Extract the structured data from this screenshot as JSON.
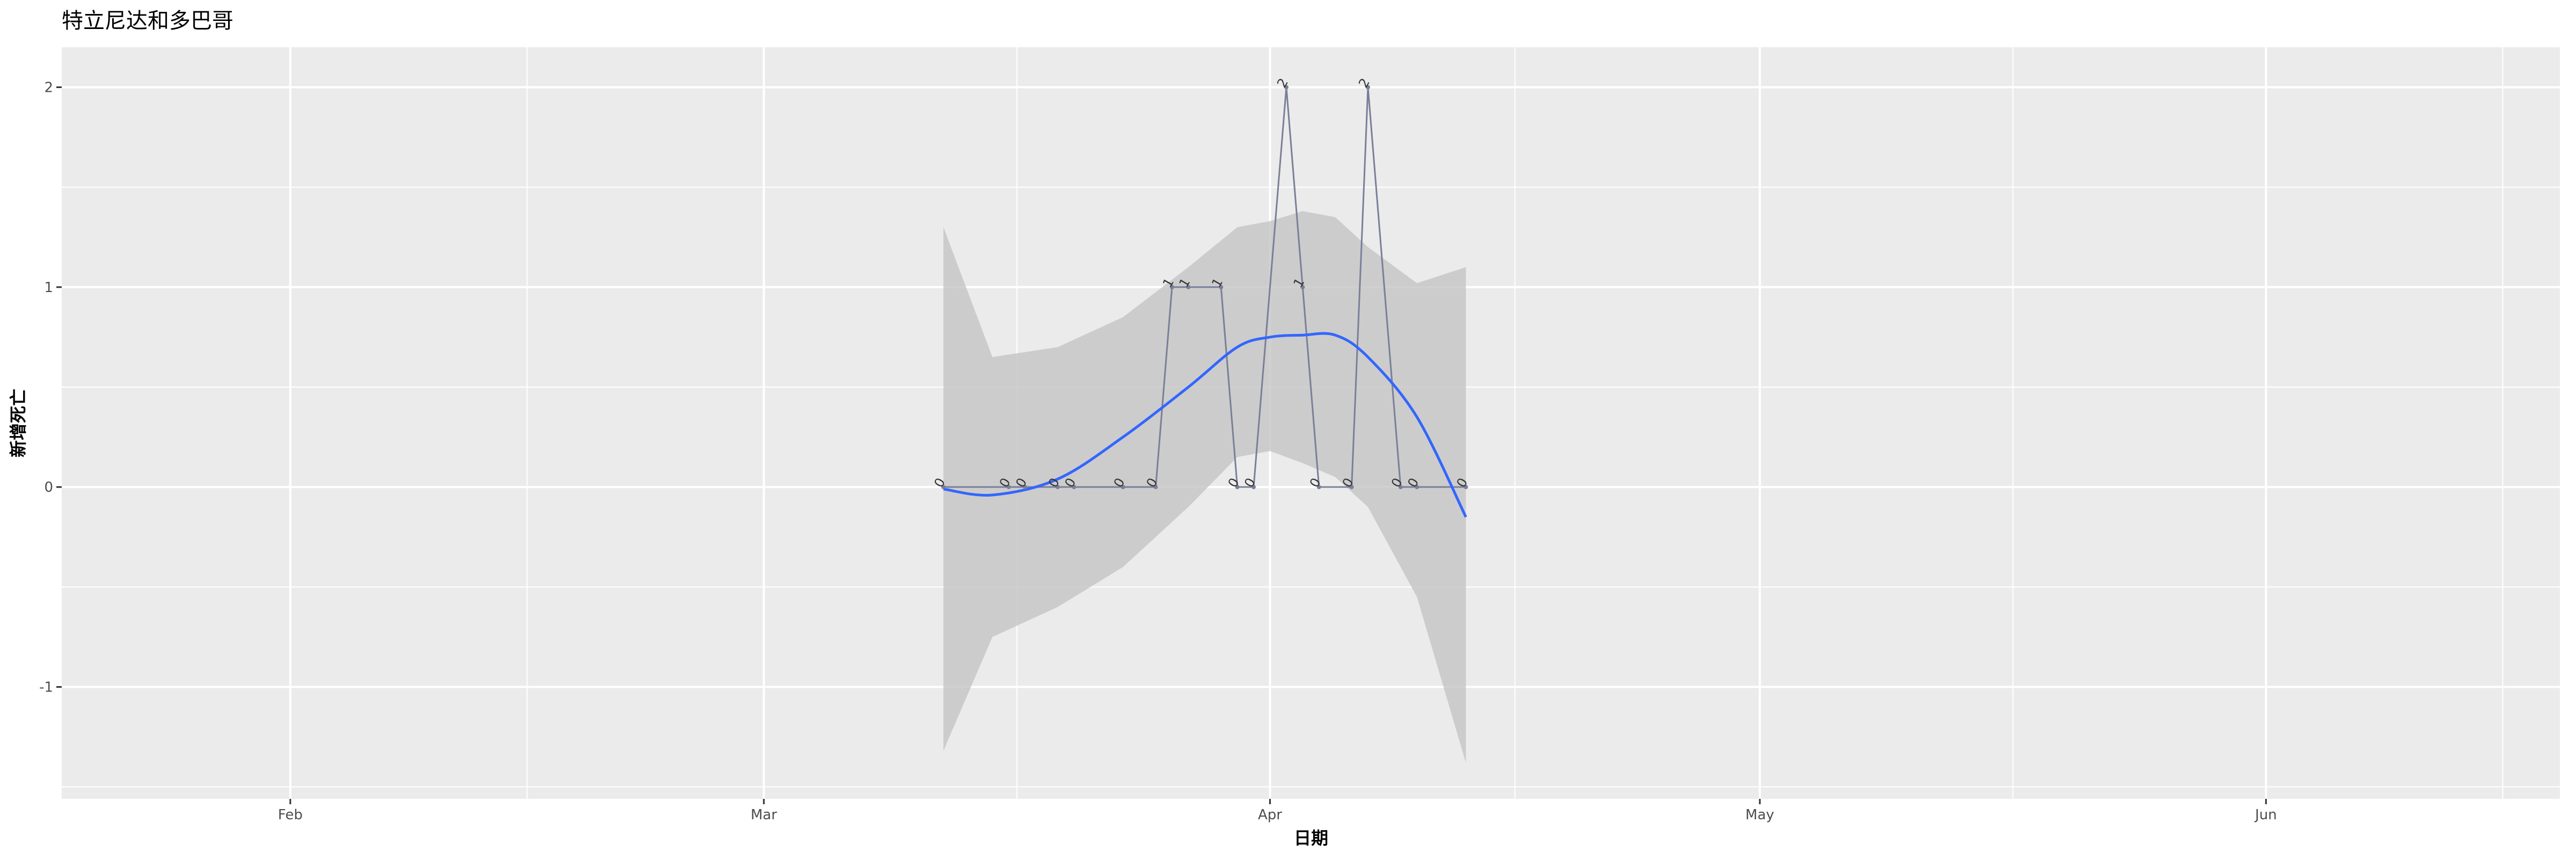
{
  "chart_data": {
    "type": "line",
    "title": "特立尼达和多巴哥",
    "xlabel": "日期",
    "ylabel": "新增死亡",
    "x_ticks": [
      "Feb",
      "Mar",
      "Apr",
      "May",
      "Jun"
    ],
    "x_tick_dates": [
      "2020-02-01",
      "2020-03-01",
      "2020-04-01",
      "2020-05-01",
      "2020-06-01"
    ],
    "y_ticks": [
      -1,
      0,
      1,
      2
    ],
    "xlim": [
      "2020-01-18",
      "2020-06-19"
    ],
    "ylim": [
      -1.56,
      2.2
    ],
    "grid": true,
    "legend": "none",
    "series": [
      {
        "values": [
          {
            "x": "2020-03-12",
            "y": 0
          },
          {
            "x": "2020-03-16",
            "y": 0
          },
          {
            "x": "2020-03-17",
            "y": 0
          },
          {
            "x": "2020-03-19",
            "y": 0
          },
          {
            "x": "2020-03-20",
            "y": 0
          },
          {
            "x": "2020-03-23",
            "y": 0
          },
          {
            "x": "2020-03-25",
            "y": 0
          },
          {
            "x": "2020-03-26",
            "y": 1
          },
          {
            "x": "2020-03-27",
            "y": 1
          },
          {
            "x": "2020-03-29",
            "y": 1
          },
          {
            "x": "2020-03-30",
            "y": 0
          },
          {
            "x": "2020-03-31",
            "y": 0
          },
          {
            "x": "2020-04-02",
            "y": 2
          },
          {
            "x": "2020-04-03",
            "y": 1
          },
          {
            "x": "2020-04-04",
            "y": 0
          },
          {
            "x": "2020-04-06",
            "y": 0
          },
          {
            "x": "2020-04-07",
            "y": 2
          },
          {
            "x": "2020-04-09",
            "y": 0
          },
          {
            "x": "2020-04-10",
            "y": 0
          },
          {
            "x": "2020-04-13",
            "y": 0
          }
        ]
      }
    ],
    "smooth": {
      "method": "loess",
      "x": [
        "2020-03-12",
        "2020-03-15",
        "2020-03-19",
        "2020-03-23",
        "2020-03-27",
        "2020-03-30",
        "2020-04-01",
        "2020-04-03",
        "2020-04-05",
        "2020-04-07",
        "2020-04-10",
        "2020-04-13"
      ],
      "y": [
        -0.01,
        -0.04,
        0.04,
        0.25,
        0.5,
        0.7,
        0.75,
        0.76,
        0.76,
        0.65,
        0.35,
        -0.15
      ],
      "lower": [
        -1.32,
        -0.75,
        -0.6,
        -0.4,
        -0.1,
        0.15,
        0.18,
        0.12,
        0.05,
        -0.1,
        -0.55,
        -1.38
      ],
      "upper": [
        1.3,
        0.65,
        0.7,
        0.85,
        1.1,
        1.3,
        1.33,
        1.38,
        1.35,
        1.2,
        1.02,
        1.1
      ]
    },
    "colors": {
      "panel": "#ebebeb",
      "grid": "#ffffff",
      "line": "#7a7f99",
      "smooth": "#3366ff",
      "band": "#c4c4c4"
    }
  }
}
